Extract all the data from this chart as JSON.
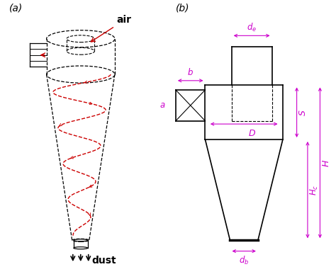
{
  "bg_color": "#ffffff",
  "label_color": "#000000",
  "line_color": "#000000",
  "red_color": "#cc0000",
  "dim_color": "#cc00cc",
  "label_a": "(a)",
  "label_b": "(b)",
  "air_text": "air",
  "dust_text": "dust",
  "dim_a": "a",
  "dim_b": "b",
  "dim_D": "D",
  "dim_S": "S",
  "dim_Hc": "H_c",
  "dim_H": "H",
  "dim_de": "d_e",
  "dim_db": "d_b"
}
